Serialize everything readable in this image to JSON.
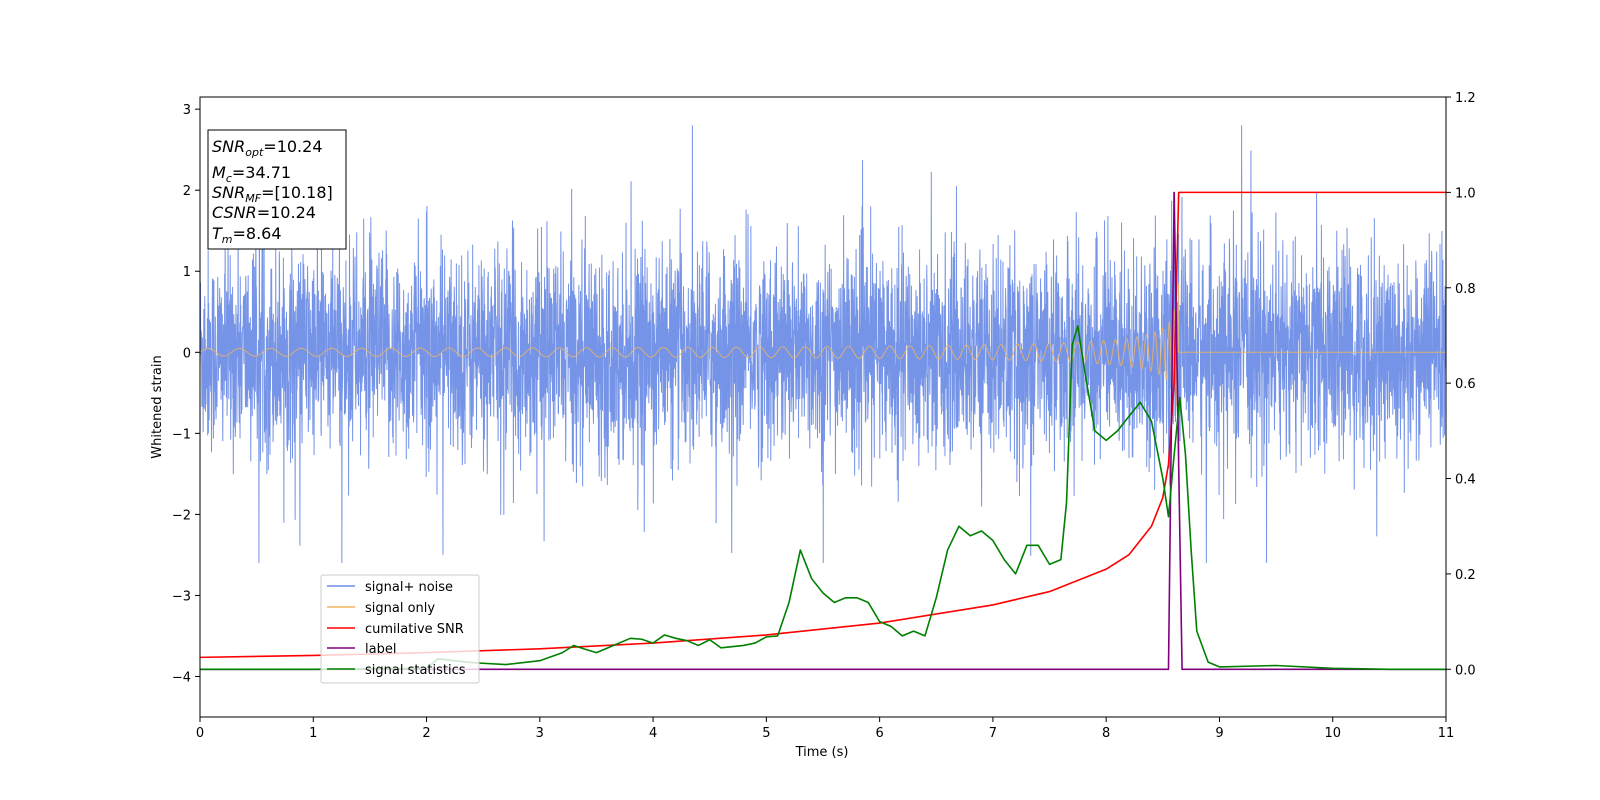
{
  "chart_data": {
    "type": "line",
    "xlabel": "Time (s)",
    "ylabel": "Whitened strain",
    "xlim": [
      0,
      11
    ],
    "ylim_left": [
      -4.5,
      3.15
    ],
    "ylim_right": [
      -0.1,
      1.2
    ],
    "x_ticks": [
      0,
      1,
      2,
      3,
      4,
      5,
      6,
      7,
      8,
      9,
      10,
      11
    ],
    "y_ticks_left": [
      3,
      2,
      1,
      0,
      -1,
      -2,
      -3,
      -4
    ],
    "y_ticks_left_labels": [
      "3",
      "2",
      "1",
      "0",
      "−1",
      "−2",
      "−3",
      "−4"
    ],
    "y_ticks_right": [
      1.2,
      1.0,
      0.8,
      0.6,
      0.4,
      0.2,
      0.0
    ],
    "y_ticks_right_labels": [
      "1.2",
      "1.0",
      "0.8",
      "0.6",
      "0.4",
      "0.2",
      "0.0"
    ],
    "grid": false,
    "legend_position": "lower-left",
    "info_box": {
      "snr_opt_base": "SNR",
      "snr_opt_sub": "opt",
      "snr_opt_value": "=10.24",
      "mc_base": "M",
      "mc_sub": "c",
      "mc_value": "=34.71",
      "snr_mf_base": "SNR",
      "snr_mf_sub": "MF",
      "snr_mf_value": "=[10.18]",
      "csnr_base": "CSNR",
      "csnr_value": "=10.24",
      "tm_base": "T",
      "tm_sub": "m",
      "tm_value": "=8.64"
    },
    "series": [
      {
        "name": "signal+ noise",
        "axis": "left",
        "color": "#6f8ee6",
        "description_values": {
          "baseline_band": [
            -1.5,
            1.5
          ],
          "max_spike": 2.8,
          "min_spike": -2.6
        }
      },
      {
        "name": "signal only",
        "axis": "left",
        "color": "#f2b55a",
        "chirp": {
          "start": 0,
          "merger": 8.64,
          "max_amplitude": 0.9
        }
      },
      {
        "name": "cumilative SNR",
        "axis": "right",
        "color": "#ff0000",
        "points": [
          [
            0,
            0.025
          ],
          [
            1,
            0.029
          ],
          [
            2,
            0.035
          ],
          [
            3,
            0.043
          ],
          [
            4,
            0.055
          ],
          [
            5,
            0.072
          ],
          [
            6,
            0.097
          ],
          [
            7,
            0.135
          ],
          [
            7.5,
            0.163
          ],
          [
            8,
            0.21
          ],
          [
            8.2,
            0.24
          ],
          [
            8.4,
            0.3
          ],
          [
            8.5,
            0.36
          ],
          [
            8.55,
            0.43
          ],
          [
            8.6,
            0.6
          ],
          [
            8.62,
            0.8
          ],
          [
            8.64,
            1.0
          ],
          [
            11,
            1.0
          ]
        ]
      },
      {
        "name": "label",
        "axis": "right",
        "color": "#800080",
        "points": [
          [
            0,
            0
          ],
          [
            8.55,
            0
          ],
          [
            8.6,
            1.0
          ],
          [
            8.67,
            0
          ],
          [
            11,
            0
          ]
        ]
      },
      {
        "name": "signal statistics",
        "axis": "right",
        "color": "#008000",
        "points": [
          [
            0,
            0.0
          ],
          [
            1,
            0.0
          ],
          [
            2,
            0.002
          ],
          [
            2.1,
            0.022
          ],
          [
            2.4,
            0.014
          ],
          [
            2.7,
            0.01
          ],
          [
            3,
            0.018
          ],
          [
            3.2,
            0.035
          ],
          [
            3.3,
            0.05
          ],
          [
            3.4,
            0.042
          ],
          [
            3.5,
            0.035
          ],
          [
            3.6,
            0.045
          ],
          [
            3.8,
            0.065
          ],
          [
            3.9,
            0.063
          ],
          [
            4.0,
            0.055
          ],
          [
            4.1,
            0.072
          ],
          [
            4.2,
            0.065
          ],
          [
            4.3,
            0.06
          ],
          [
            4.4,
            0.05
          ],
          [
            4.5,
            0.062
          ],
          [
            4.6,
            0.045
          ],
          [
            4.8,
            0.05
          ],
          [
            4.9,
            0.055
          ],
          [
            5.0,
            0.068
          ],
          [
            5.1,
            0.07
          ],
          [
            5.2,
            0.14
          ],
          [
            5.3,
            0.25
          ],
          [
            5.4,
            0.19
          ],
          [
            5.5,
            0.16
          ],
          [
            5.6,
            0.14
          ],
          [
            5.7,
            0.15
          ],
          [
            5.8,
            0.15
          ],
          [
            5.9,
            0.14
          ],
          [
            6.0,
            0.1
          ],
          [
            6.1,
            0.09
          ],
          [
            6.2,
            0.07
          ],
          [
            6.3,
            0.08
          ],
          [
            6.4,
            0.07
          ],
          [
            6.5,
            0.15
          ],
          [
            6.6,
            0.25
          ],
          [
            6.7,
            0.3
          ],
          [
            6.8,
            0.28
          ],
          [
            6.9,
            0.29
          ],
          [
            7.0,
            0.27
          ],
          [
            7.1,
            0.23
          ],
          [
            7.2,
            0.2
          ],
          [
            7.3,
            0.26
          ],
          [
            7.4,
            0.26
          ],
          [
            7.5,
            0.22
          ],
          [
            7.6,
            0.23
          ],
          [
            7.65,
            0.35
          ],
          [
            7.7,
            0.68
          ],
          [
            7.75,
            0.72
          ],
          [
            7.8,
            0.64
          ],
          [
            7.9,
            0.5
          ],
          [
            8.0,
            0.48
          ],
          [
            8.1,
            0.5
          ],
          [
            8.2,
            0.53
          ],
          [
            8.3,
            0.56
          ],
          [
            8.4,
            0.52
          ],
          [
            8.5,
            0.4
          ],
          [
            8.55,
            0.32
          ],
          [
            8.6,
            0.45
          ],
          [
            8.65,
            0.57
          ],
          [
            8.7,
            0.45
          ],
          [
            8.75,
            0.25
          ],
          [
            8.8,
            0.08
          ],
          [
            8.9,
            0.015
          ],
          [
            9.0,
            0.005
          ],
          [
            9.5,
            0.008
          ],
          [
            10.0,
            0.002
          ],
          [
            10.5,
            0.0
          ],
          [
            11,
            0.0
          ]
        ]
      }
    ]
  }
}
